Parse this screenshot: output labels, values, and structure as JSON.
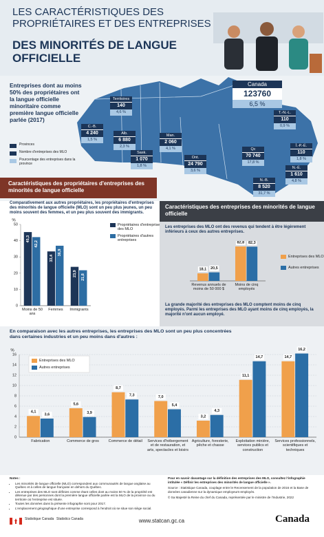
{
  "header": {
    "title_line1": "LES CARACTÉRISTIQUES DES PROPRIÉTAIRES ET DES ENTREPRISES",
    "title_line2": "DES MINORITÉS DE LANGUE OFFICIELLE"
  },
  "map": {
    "intro": "Entreprises dont au moins 50% des propriétaires ont la langue officielle minoritaire comme première langue officielle parlée (2017)",
    "legend": [
      "Provinces",
      "Nombre d'entreprises des MLO",
      "Pourcentage des entreprises dans la province"
    ],
    "canada": {
      "name": "Canada",
      "count": "123760",
      "percent": "6,5 %"
    },
    "regions": [
      {
        "name": "Territoires",
        "count": "140",
        "percent": "4,6 %"
      },
      {
        "name": "C.-B.",
        "count": "4 240",
        "percent": "1,5 %"
      },
      {
        "name": "Alb.",
        "count": "6 880",
        "percent": "2,3 %"
      },
      {
        "name": "Sask.",
        "count": "1 070",
        "percent": "1,8 %"
      },
      {
        "name": "Man.",
        "count": "2 060",
        "percent": "4,1 %"
      },
      {
        "name": "Ont.",
        "count": "24 790",
        "percent": "3,6 %"
      },
      {
        "name": "Qc",
        "count": "70 740",
        "percent": "17,8 %"
      },
      {
        "name": "T.-N.-L.",
        "count": "110",
        "percent": "0,9 %"
      },
      {
        "name": "Î.-P.-É.",
        "count": "110",
        "percent": "1,8 %"
      },
      {
        "name": "N.-É.",
        "count": "1 610",
        "percent": "4,8 %"
      },
      {
        "name": "N.-B.",
        "count": "8 520",
        "percent": "31,7 %"
      }
    ]
  },
  "owners": {
    "heading": "Caractéristiques des propriétaires d'entreprises des minorités de langue officielle",
    "text": "Comparativement aux autres propriétaires, les propriétaires d'entreprises des minorités de langue officielle (MLO) sont un peu plus jeunes, un peu moins souvent des femmes, et un peu plus souvent des immigrants."
  },
  "businesses": {
    "heading": "Caractéristiques des entreprises des minorités de langue officielle",
    "text": "Les entreprises des MLO ont des revenus qui tendent à être légèrement inférieurs à ceux des autres entreprises.",
    "note": "La grande majorité des entreprises des MLO comptent moins de cinq employés. Parmi les entreprises des MLO ayant moins de cinq employés, la majorité n'ont aucun employé."
  },
  "industries": {
    "text": "En comparaison avec les autres entreprises, les entreprises des MLO sont un peu plus concentrées dans certaines industries et un peu moins dans d'autres :"
  },
  "chart_data": [
    {
      "type": "bar",
      "y_label": "%",
      "categories": [
        "Moins de 50 ans",
        "Femmes",
        "Immigrants"
      ],
      "series": [
        {
          "name": "Propriétaires d'entreprises des MLO",
          "color": "#1d3557",
          "values": [
            45.3,
            33.4,
            23.9
          ],
          "value_labels": [
            "45,3",
            "33,4",
            "23,9"
          ]
        },
        {
          "name": "Propriétaires d'autres entreprises",
          "color": "#2d6da3",
          "values": [
            42.2,
            36.9,
            21.8
          ],
          "value_labels": [
            "42,2",
            "36,9",
            "21,8"
          ]
        }
      ],
      "ylim": [
        0,
        50
      ],
      "yticks": [
        0,
        10,
        20,
        30,
        40,
        50
      ],
      "legend": "right"
    },
    {
      "type": "bar",
      "categories": [
        "Revenus annuels de moins de 50 000 $",
        "Moins de cinq employés"
      ],
      "series": [
        {
          "name": "Entreprises des MLO",
          "color": "#f0a04b",
          "values": [
            18.1,
            82.8
          ],
          "value_labels": [
            "18,1",
            "82,8"
          ]
        },
        {
          "name": "Autres entreprises",
          "color": "#2b6ea6",
          "values": [
            20.5,
            82.3
          ],
          "value_labels": [
            "20,5",
            "82,3"
          ]
        }
      ],
      "legend": "right"
    },
    {
      "type": "bar",
      "y_label": "%",
      "categories": [
        "Fabrication",
        "Commerce de gros",
        "Commerce de détail",
        "Services d'hébergement et de restauration, et arts, spectacles et loisirs",
        "Agriculture, foresterie, pêche et chasse",
        "Exploitation minière, services publics et construction",
        "Services professionnels, scientifiques et techniques"
      ],
      "series": [
        {
          "name": "Entreprises des MLO",
          "color": "#f0a04b",
          "values": [
            4.1,
            5.6,
            8.7,
            7.0,
            3.2,
            11.1,
            14.7
          ],
          "value_labels": [
            "4,1",
            "5,6",
            "8,7",
            "7,0",
            "3,2",
            "11,1",
            "14,7"
          ]
        },
        {
          "name": "Autres entreprises",
          "color": "#2b6ea6",
          "values": [
            3.6,
            3.9,
            7.3,
            5.4,
            4.3,
            14.7,
            16.2
          ],
          "value_labels": [
            "3,6",
            "3,9",
            "7,3",
            "5,4",
            "4,3",
            "14,7",
            "16,2"
          ]
        }
      ],
      "ylim": [
        0,
        16
      ],
      "yticks": [
        0,
        2,
        4,
        6,
        8,
        10,
        12,
        14,
        16
      ],
      "grid": true,
      "legend": "upper left"
    }
  ],
  "footer": {
    "notes_title": "Notes :",
    "notes": [
      "Les minorités de langue officielle (MLO) correspondent aux communautés de langue anglaise au Québec et à celles de langue française en dehors du Québec.",
      "Les entreprises des MLO sont définies comme étant celles dont au moins 50 % de la propriété est détenue par des personnes dont la première langue officielle parlée est la MLO de la province ou du territoire où l'entreprise est située.",
      "Toutes les données dans la présente infographie sont pour 2017.",
      "L'emplacement géographique d'une entreprise correspond à l'endroit où se situe son siège social."
    ],
    "more_info": "Pour en savoir davantage sur la définition des entreprises des MLO, consultez l'infographie intitulée « Définir les entreprises des minorités de langue officielle ».",
    "source": "Source : Statistique Canada, couplage entre le Recensement de la population de 2016 et la Base de données canadienne sur la dynamique employeurs-employés.",
    "copyright": "© Sa Majesté la Reine du chef du Canada, représentée par le ministre de l'Industrie, 2022",
    "url": "www.statcan.gc.ca",
    "agency_fr": "Statistique Canada",
    "agency_en": "Statistics Canada",
    "wordmark": "Canada"
  }
}
